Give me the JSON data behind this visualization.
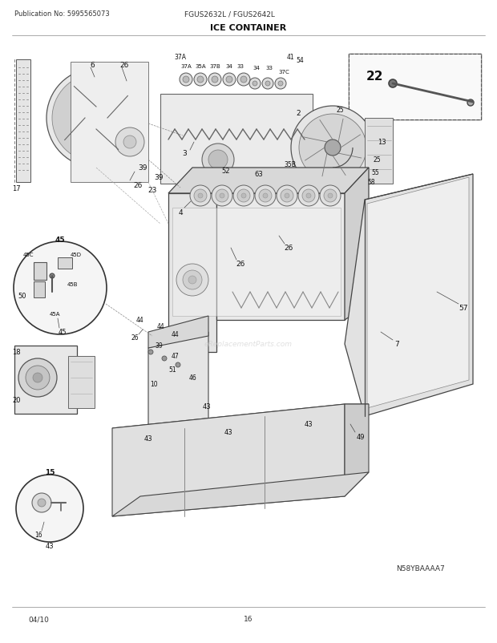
{
  "title": "ICE CONTAINER",
  "pub_no": "Publication No: 5995565073",
  "model": "FGUS2632L / FGUS2642L",
  "diagram_id": "N58YBAAAA7",
  "footer_left": "04/10",
  "footer_center": "16",
  "bg_color": "#ffffff",
  "lc": "#444444",
  "fig_width": 6.2,
  "fig_height": 8.03,
  "dpi": 100
}
